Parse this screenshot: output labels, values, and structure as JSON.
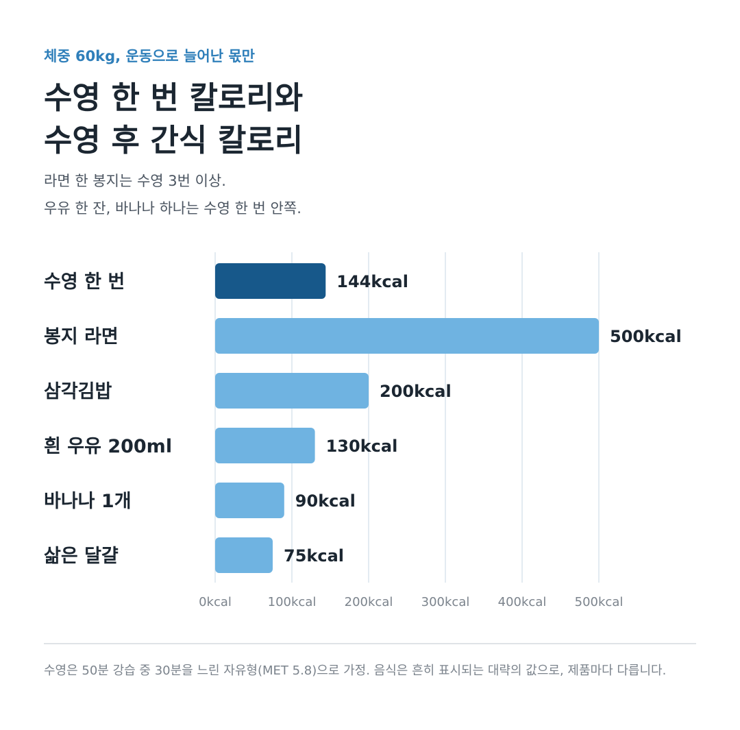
{
  "header": {
    "kicker": "체중 60kg, 운동으로 늘어난 몫만",
    "title_lines": [
      "수영 한 번 칼로리와",
      "수영 후 간식 칼로리"
    ],
    "subtitle_lines": [
      "라면 한 봉지는 수영 3번 이상.",
      "우유 한 잔, 바나나 하나는 수영 한 번 안쪽."
    ]
  },
  "chart_data": {
    "type": "bar",
    "orientation": "horizontal",
    "categories": [
      "수영 한 번",
      "봉지 라면",
      "삼각김밥",
      "흰 우유 200ml",
      "바나나 1개",
      "삶은 달걀"
    ],
    "values": [
      144,
      500,
      200,
      130,
      90,
      75
    ],
    "value_labels": [
      "144kcal",
      "500kcal",
      "200kcal",
      "130kcal",
      "90kcal",
      "75kcal"
    ],
    "highlight_index": 0,
    "x_ticks": [
      0,
      100,
      200,
      300,
      400,
      500
    ],
    "x_tick_labels": [
      "0kcal",
      "100kcal",
      "200kcal",
      "300kcal",
      "400kcal",
      "500kcal"
    ],
    "xlim": [
      0,
      500
    ],
    "grid": true,
    "colors": {
      "highlight": "#17588a",
      "default": "#6fb3e1",
      "grid": "#e3ebf1",
      "tick": "#7b838c",
      "label": "#1b2631"
    }
  },
  "footnote": "수영은 50분 강습 중 30분을 느린 자유형(MET 5.8)으로 가정. 음식은 흔히 표시되는 대략의 값으로, 제품마다 다릅니다."
}
